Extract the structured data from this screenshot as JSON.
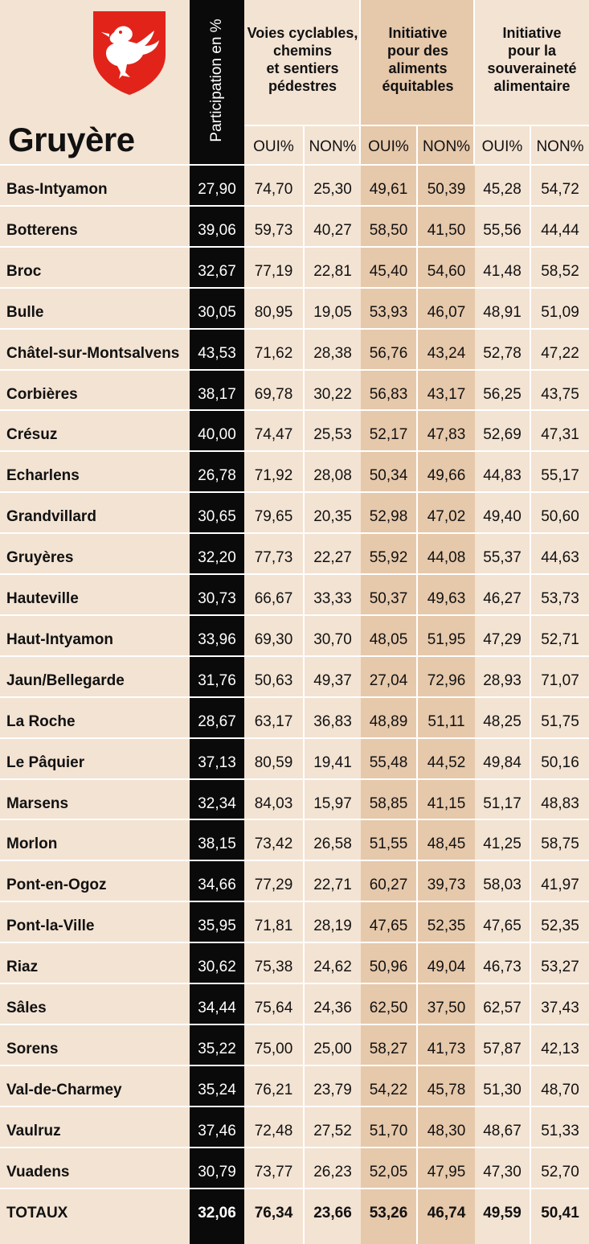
{
  "region": "Gruyère",
  "participation_header": "Participation en %",
  "groups": [
    {
      "title": "Voies cyclables,\nchemins\net sentiers\npédestres"
    },
    {
      "title": "Initiative\npour des\naliments\néquitables"
    },
    {
      "title": "Initiative\npour la\nsouveraineté\nalimentaire"
    }
  ],
  "sub_headers": [
    "OUI%",
    "NON%",
    "OUI%",
    "NON%",
    "OUI%",
    "NON%"
  ],
  "colors": {
    "background": "#f3e3d3",
    "highlight_column": "#e6c8ab",
    "participation_column": "#0a0a0a",
    "coat_of_arms_red": "#e2231a"
  },
  "logo": {
    "icon": "crane-coat-of-arms-icon"
  },
  "rows": [
    {
      "name": "Bas-Intyamon",
      "part": "27,90",
      "v": [
        "74,70",
        "25,30",
        "49,61",
        "50,39",
        "45,28",
        "54,72"
      ]
    },
    {
      "name": "Botterens",
      "part": "39,06",
      "v": [
        "59,73",
        "40,27",
        "58,50",
        "41,50",
        "55,56",
        "44,44"
      ]
    },
    {
      "name": "Broc",
      "part": "32,67",
      "v": [
        "77,19",
        "22,81",
        "45,40",
        "54,60",
        "41,48",
        "58,52"
      ]
    },
    {
      "name": "Bulle",
      "part": "30,05",
      "v": [
        "80,95",
        "19,05",
        "53,93",
        "46,07",
        "48,91",
        "51,09"
      ]
    },
    {
      "name": "Châtel-sur-Montsalvens",
      "part": "43,53",
      "v": [
        "71,62",
        "28,38",
        "56,76",
        "43,24",
        "52,78",
        "47,22"
      ]
    },
    {
      "name": "Corbières",
      "part": "38,17",
      "v": [
        "69,78",
        "30,22",
        "56,83",
        "43,17",
        "56,25",
        "43,75"
      ]
    },
    {
      "name": "Crésuz",
      "part": "40,00",
      "v": [
        "74,47",
        "25,53",
        "52,17",
        "47,83",
        "52,69",
        "47,31"
      ]
    },
    {
      "name": "Echarlens",
      "part": "26,78",
      "v": [
        "71,92",
        "28,08",
        "50,34",
        "49,66",
        "44,83",
        "55,17"
      ]
    },
    {
      "name": "Grandvillard",
      "part": "30,65",
      "v": [
        "79,65",
        "20,35",
        "52,98",
        "47,02",
        "49,40",
        "50,60"
      ]
    },
    {
      "name": "Gruyères",
      "part": "32,20",
      "v": [
        "77,73",
        "22,27",
        "55,92",
        "44,08",
        "55,37",
        "44,63"
      ]
    },
    {
      "name": "Hauteville",
      "part": "30,73",
      "v": [
        "66,67",
        "33,33",
        "50,37",
        "49,63",
        "46,27",
        "53,73"
      ]
    },
    {
      "name": "Haut-Intyamon",
      "part": "33,96",
      "v": [
        "69,30",
        "30,70",
        "48,05",
        "51,95",
        "47,29",
        "52,71"
      ]
    },
    {
      "name": "Jaun/Bellegarde",
      "part": "31,76",
      "v": [
        "50,63",
        "49,37",
        "27,04",
        "72,96",
        "28,93",
        "71,07"
      ]
    },
    {
      "name": "La Roche",
      "part": "28,67",
      "v": [
        "63,17",
        "36,83",
        "48,89",
        "51,11",
        "48,25",
        "51,75"
      ]
    },
    {
      "name": "Le Pâquier",
      "part": "37,13",
      "v": [
        "80,59",
        "19,41",
        "55,48",
        "44,52",
        "49,84",
        "50,16"
      ]
    },
    {
      "name": "Marsens",
      "part": "32,34",
      "v": [
        "84,03",
        "15,97",
        "58,85",
        "41,15",
        "51,17",
        "48,83"
      ]
    },
    {
      "name": "Morlon",
      "part": "38,15",
      "v": [
        "73,42",
        "26,58",
        "51,55",
        "48,45",
        "41,25",
        "58,75"
      ]
    },
    {
      "name": "Pont-en-Ogoz",
      "part": "34,66",
      "v": [
        "77,29",
        "22,71",
        "60,27",
        "39,73",
        "58,03",
        "41,97"
      ]
    },
    {
      "name": "Pont-la-Ville",
      "part": "35,95",
      "v": [
        "71,81",
        "28,19",
        "47,65",
        "52,35",
        "47,65",
        "52,35"
      ]
    },
    {
      "name": "Riaz",
      "part": "30,62",
      "v": [
        "75,38",
        "24,62",
        "50,96",
        "49,04",
        "46,73",
        "53,27"
      ]
    },
    {
      "name": "Sâles",
      "part": "34,44",
      "v": [
        "75,64",
        "24,36",
        "62,50",
        "37,50",
        "62,57",
        "37,43"
      ]
    },
    {
      "name": "Sorens",
      "part": "35,22",
      "v": [
        "75,00",
        "25,00",
        "58,27",
        "41,73",
        "57,87",
        "42,13"
      ]
    },
    {
      "name": "Val-de-Charmey",
      "part": "35,24",
      "v": [
        "76,21",
        "23,79",
        "54,22",
        "45,78",
        "51,30",
        "48,70"
      ]
    },
    {
      "name": "Vaulruz",
      "part": "37,46",
      "v": [
        "72,48",
        "27,52",
        "51,70",
        "48,30",
        "48,67",
        "51,33"
      ]
    },
    {
      "name": "Vuadens",
      "part": "30,79",
      "v": [
        "73,77",
        "26,23",
        "52,05",
        "47,95",
        "47,30",
        "52,70"
      ]
    },
    {
      "name": "TOTAUX",
      "part": "32,06",
      "v": [
        "76,34",
        "23,66",
        "53,26",
        "46,74",
        "49,59",
        "50,41"
      ],
      "total": true
    }
  ]
}
